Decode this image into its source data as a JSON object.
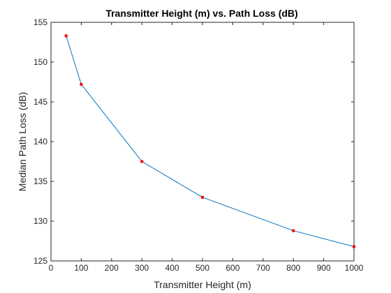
{
  "chart_data": {
    "type": "line",
    "title": "Transmitter Height (m) vs. Path Loss (dB)",
    "xlabel": "Transmitter Height (m)",
    "ylabel": "Median Path Loss (dB)",
    "xlim": [
      0,
      1000
    ],
    "ylim": [
      125,
      155
    ],
    "xticks": [
      "0",
      "100",
      "200",
      "300",
      "400",
      "500",
      "600",
      "700",
      "800",
      "900",
      "1000"
    ],
    "yticks": [
      "125",
      "130",
      "135",
      "140",
      "145",
      "150",
      "155"
    ],
    "grid": false,
    "series": [
      {
        "x": [
          50,
          100,
          300,
          500,
          800,
          1000
        ],
        "y": [
          153.3,
          147.2,
          137.5,
          133.0,
          128.8,
          126.8
        ],
        "line_color": "#0072BD",
        "marker_color": "#FF0000",
        "marker": "square"
      }
    ]
  }
}
